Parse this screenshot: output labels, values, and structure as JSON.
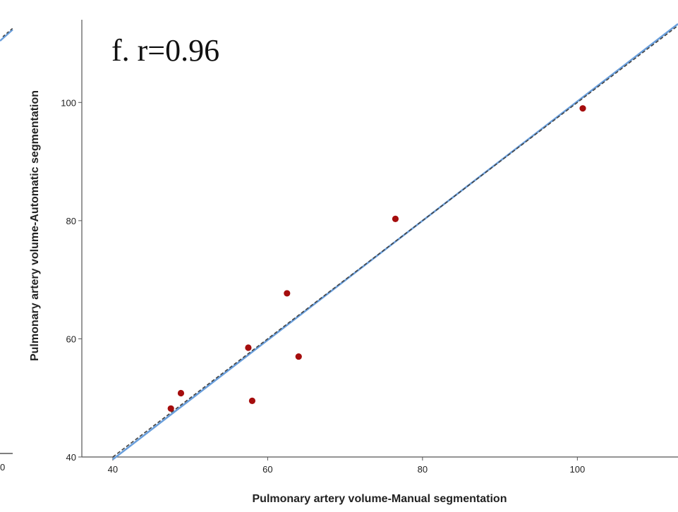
{
  "chart_data": {
    "type": "scatter",
    "title": "f. r=0.96",
    "xlabel": "Pulmonary artery volume-Manual segmentation",
    "ylabel": "Pulmonary artery volume-Automatic segmentation",
    "xlim": [
      36,
      113
    ],
    "ylim": [
      40,
      114
    ],
    "xticks": [
      40,
      60,
      80,
      100
    ],
    "yticks": [
      40,
      60,
      80,
      100
    ],
    "grid": false,
    "points": [
      {
        "x": 47.5,
        "y": 48.2
      },
      {
        "x": 48.8,
        "y": 50.8
      },
      {
        "x": 57.5,
        "y": 58.5
      },
      {
        "x": 58.0,
        "y": 49.5
      },
      {
        "x": 62.5,
        "y": 67.7
      },
      {
        "x": 64.0,
        "y": 57.0
      },
      {
        "x": 76.5,
        "y": 80.3
      },
      {
        "x": 100.7,
        "y": 99.0
      }
    ],
    "lines": [
      {
        "kind": "fit",
        "style": "solid",
        "color": "#6a9fdc",
        "x": [
          40,
          113
        ],
        "y": [
          39.6,
          113.3
        ]
      },
      {
        "kind": "identity",
        "style": "dashed",
        "color": "#444444",
        "x": [
          40,
          113
        ],
        "y": [
          40,
          113
        ]
      }
    ],
    "point_color": "#a50d0d",
    "left_panel_partial_tick": "0"
  }
}
